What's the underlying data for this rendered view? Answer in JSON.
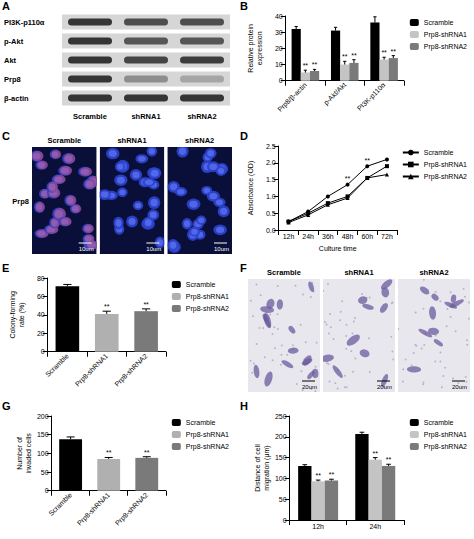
{
  "blot": {
    "panel": "A",
    "rows": [
      "PI3K-p110α",
      "p-Akt",
      "Akt",
      "Prp8",
      "β-actin"
    ],
    "lanes": [
      "Scramble",
      "shRNA1",
      "shRNA2"
    ]
  },
  "micrographs": [
    {
      "panel": "C",
      "row_label": "Prp8",
      "lanes": [
        "Scramble",
        "shRNA1",
        "shRNA2"
      ],
      "scale_bar": "10um"
    },
    {
      "panel": "F",
      "lanes": [
        "Scramble",
        "shRNA1",
        "shRNA2"
      ],
      "scale_bar": "20um"
    }
  ],
  "chart_data": [
    {
      "panel": "B",
      "type": "bar",
      "y_label": "Relative protein expression",
      "categories": [
        "Prp8/β-actin",
        "p-Akt/Akt",
        "PI3K-p110α"
      ],
      "series": [
        {
          "name": "Scramble",
          "color": "#000000",
          "values": [
            32,
            31,
            36
          ],
          "errors": [
            1.5,
            2,
            3.5
          ]
        },
        {
          "name": "Prp8-shRNA1",
          "color": "#c4c4c4",
          "values": [
            5,
            10,
            13
          ],
          "errors": [
            1.5,
            2,
            1.5
          ],
          "significance": [
            "**",
            "**",
            "**"
          ]
        },
        {
          "name": "Prp8-shRNA2",
          "color": "#7a7a7a",
          "values": [
            6,
            11,
            14
          ],
          "errors": [
            1,
            2,
            1.5
          ],
          "significance": [
            "**",
            "**",
            "**"
          ]
        }
      ],
      "ylim": [
        0,
        40
      ],
      "yticks": [
        0,
        10,
        20,
        30,
        40
      ],
      "legend": "right",
      "grid": false
    },
    {
      "panel": "D",
      "type": "line",
      "y_label": "Absorbance (OD)",
      "x_label": "Culture time",
      "categories": [
        "12h",
        "24h",
        "36h",
        "48h",
        "60h",
        "72h"
      ],
      "series": [
        {
          "name": "Scramble",
          "color": "#000000",
          "marker": "circle",
          "values": [
            0.25,
            0.55,
            1.0,
            1.35,
            1.9,
            2.1
          ]
        },
        {
          "name": "Prp8-shRNA1",
          "color": "#000000",
          "marker": "square",
          "values": [
            0.25,
            0.5,
            0.8,
            1.0,
            1.55,
            1.9
          ]
        },
        {
          "name": "Prp8-shRNA2",
          "color": "#000000",
          "marker": "triangle",
          "values": [
            0.22,
            0.45,
            0.75,
            0.95,
            1.55,
            1.65
          ]
        }
      ],
      "annotations": [
        {
          "x": "48h",
          "y": 1.42,
          "text": "**"
        },
        {
          "x": "60h",
          "y": 1.97,
          "text": "**"
        }
      ],
      "ylim": [
        0,
        2.5
      ],
      "yticks": [
        {
          "value": 0,
          "label": "0.0"
        },
        0.5,
        {
          "value": 1,
          "label": "1.0"
        },
        1.5,
        {
          "value": 2,
          "label": "2.0"
        },
        2.5
      ],
      "legend": "right",
      "grid": false
    },
    {
      "panel": "E",
      "type": "bar",
      "y_label": "Colony-forming rate (%)",
      "categories": [
        "Scramble",
        "Prp8-shRNA1",
        "Prp8-shRNA2"
      ],
      "values": [
        71,
        41,
        44
      ],
      "errors": [
        2,
        3,
        2.5
      ],
      "significance": [
        null,
        "**",
        "**"
      ],
      "colors": [
        "#000000",
        "#b0b0b0",
        "#7a7a7a"
      ],
      "ylim": [
        0,
        80
      ],
      "yticks": [
        0,
        20,
        40,
        60,
        80
      ],
      "legend": "right",
      "grid": false
    },
    {
      "panel": "G",
      "type": "bar",
      "y_label": "Number of invaded cells",
      "categories": [
        "Scramble",
        "Prp8-shRNA1",
        "Prp8-shRNA2"
      ],
      "values": [
        138,
        85,
        88
      ],
      "errors": [
        6,
        4,
        3
      ],
      "significance": [
        null,
        "**",
        "**"
      ],
      "colors": [
        "#000000",
        "#b0b0b0",
        "#7a7a7a"
      ],
      "ylim": [
        0,
        200
      ],
      "yticks": [
        0,
        50,
        100,
        150,
        200
      ],
      "legend": "right",
      "grid": false
    },
    {
      "panel": "H",
      "type": "bar",
      "y_label": "Distance of cell migration (μm)",
      "categories": [
        "12h",
        "24h"
      ],
      "series": [
        {
          "name": "Scramble",
          "color": "#000000",
          "values": [
            130,
            207
          ],
          "errors": [
            3,
            4
          ]
        },
        {
          "name": "Prp8-shRNA1",
          "color": "#c4c4c4",
          "values": [
            93,
            145
          ],
          "errors": [
            3,
            5
          ],
          "significance": [
            "**",
            "**"
          ]
        },
        {
          "name": "Prp8-shRNA2",
          "color": "#7a7a7a",
          "values": [
            95,
            130
          ],
          "errors": [
            3,
            4
          ],
          "significance": [
            "**",
            "**"
          ]
        }
      ],
      "ylim": [
        0,
        250
      ],
      "yticks": [
        0,
        50,
        100,
        150,
        200,
        250
      ],
      "legend": "right",
      "grid": false
    }
  ]
}
